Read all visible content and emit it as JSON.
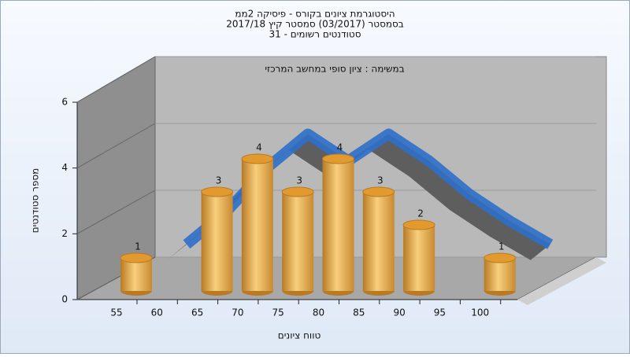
{
  "chart_data": {
    "type": "bar3d",
    "title": "היסטוגרמת ציונים בקורס - פיסיקה 2ממ",
    "subtitle": "בסמסטר (03/2017) סמסטר קיץ 2017/18",
    "subtitle2": "סטודנטים רשומים - 31",
    "annotation": "במשימה : ציון סופי במחשב המרכזי",
    "x_label": "טווח ציונים",
    "y_label": "מספר סטודנטים",
    "categories": [
      "55",
      "60",
      "65",
      "70",
      "75",
      "80",
      "85",
      "90",
      "95",
      "100"
    ],
    "values": [
      1,
      0,
      3,
      4,
      3,
      4,
      3,
      2,
      0,
      1
    ],
    "value_labels": [
      "1",
      null,
      "3",
      "4",
      "3",
      "4",
      "3",
      "2",
      null,
      "1"
    ],
    "color": "#e8a640",
    "trend": {
      "values": [
        0.5,
        1.5,
        2.8,
        3.8,
        3.0,
        3.8,
        3.0,
        2.0,
        1.2,
        0.5
      ],
      "color": "#2f6fc9"
    },
    "ylim": [
      0,
      6
    ],
    "yticks": [
      0,
      2,
      4,
      6
    ]
  }
}
